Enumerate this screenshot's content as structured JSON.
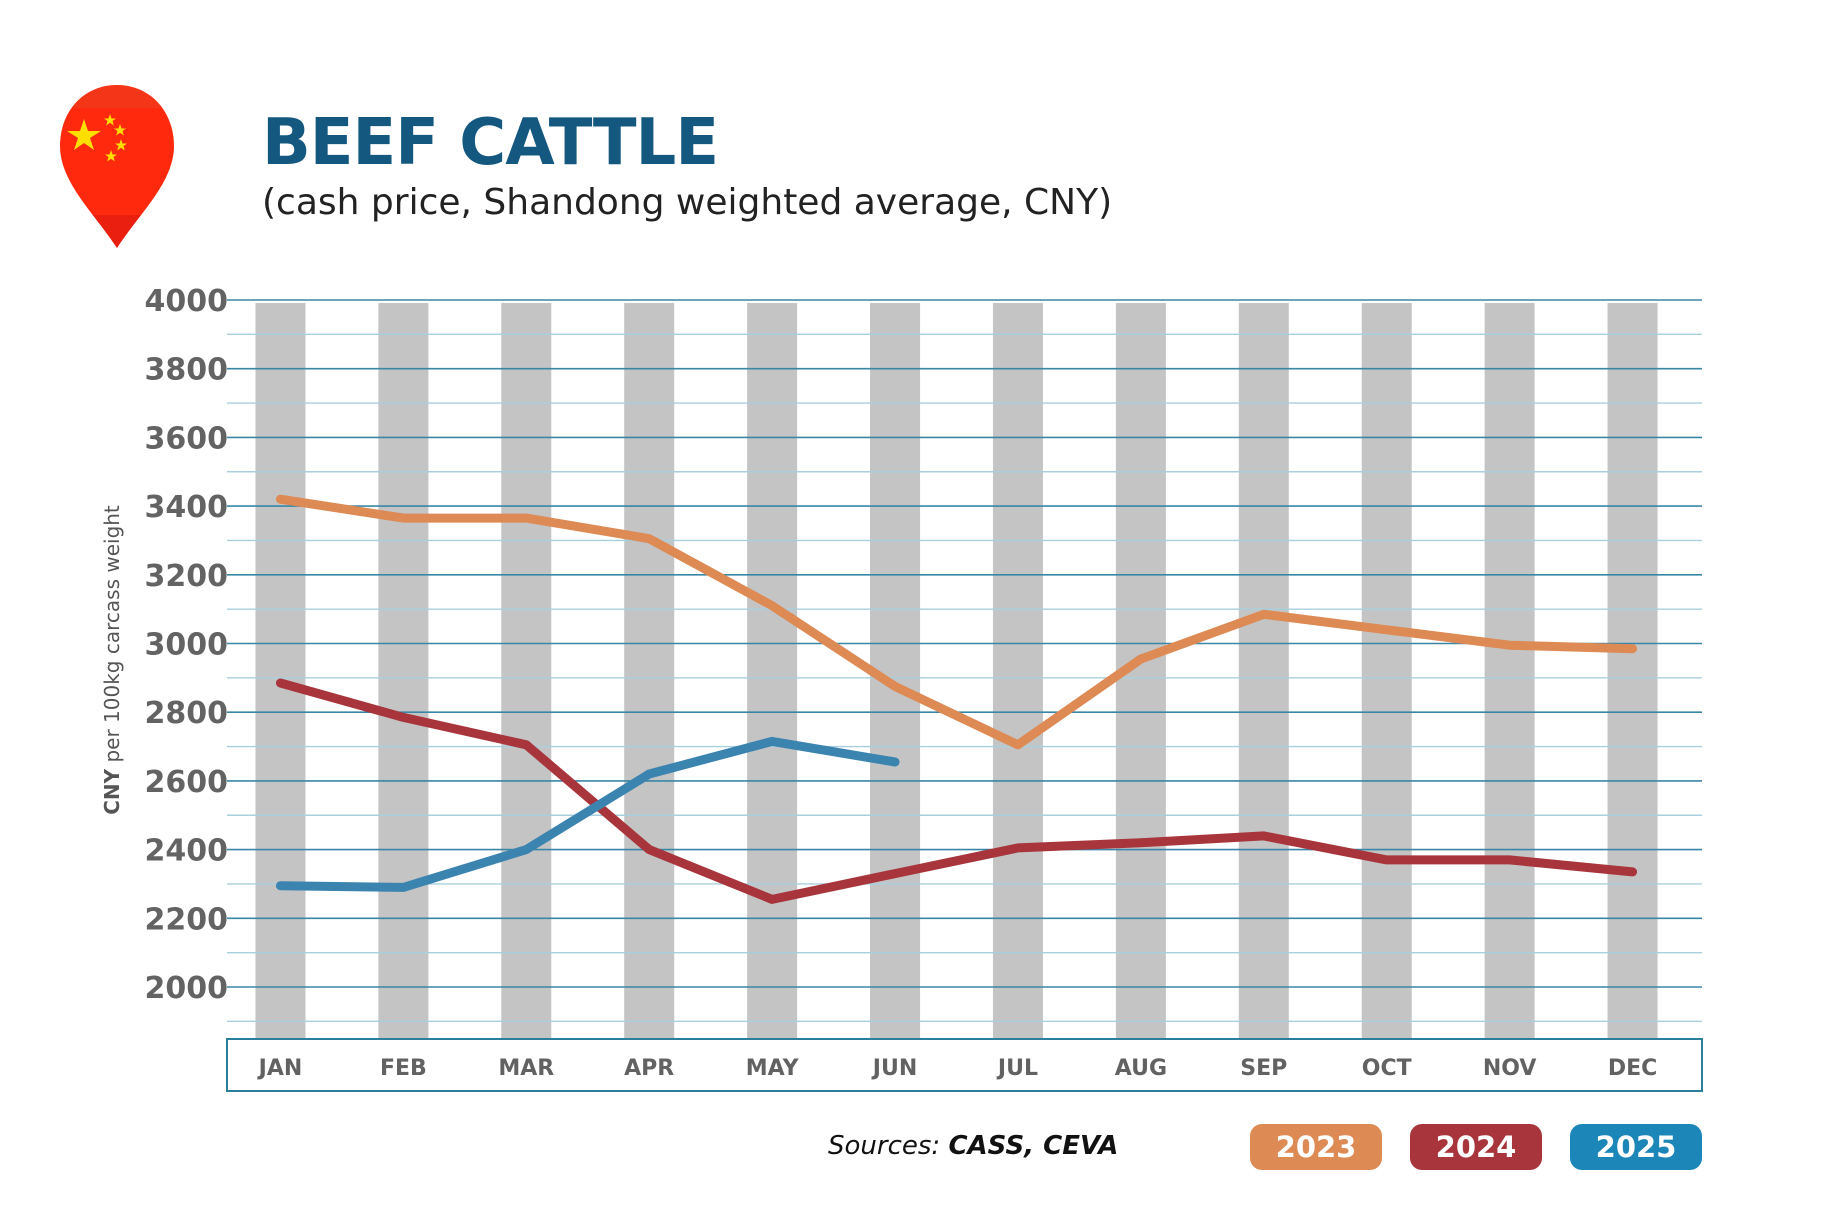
{
  "header": {
    "title": "BEEF CATTLE",
    "subtitle": "(cash price, Shandong weighted average, CNY)",
    "flag_icon": "china-flag-map-pin-icon"
  },
  "footer": {
    "sources_prefix": "Sources: ",
    "sources_names": "CASS, CEVA"
  },
  "colors": {
    "title": "#15587f",
    "series_2023": "#dd8a54",
    "series_2024": "#a8353b",
    "series_2025": "#3c84b0",
    "legend_2025": "#1b86b7",
    "grid_major": "#3a86a6",
    "grid_minor": "#a9cfde",
    "column_band": "#c4c4c4"
  },
  "chart_data": {
    "type": "line",
    "ylabel_bold": "CNY",
    "ylabel_rest": " per 100kg carcass weight",
    "ylim": [
      1860,
      4000
    ],
    "yticks": [
      4000,
      3800,
      3600,
      3400,
      3200,
      3000,
      2800,
      2600,
      2400,
      2200,
      2000
    ],
    "grid": true,
    "legend_position": "bottom-right",
    "categories": [
      "JAN",
      "FEB",
      "MAR",
      "APR",
      "MAY",
      "JUN",
      "JUL",
      "AUG",
      "SEP",
      "OCT",
      "NOV",
      "DEC"
    ],
    "series": [
      {
        "name": "2023",
        "color": "#dd8a54",
        "values": [
          3420,
          3365,
          3365,
          3305,
          3110,
          2875,
          2705,
          2955,
          3085,
          3040,
          2995,
          2985
        ]
      },
      {
        "name": "2024",
        "color": "#a8353b",
        "values": [
          2885,
          2785,
          2705,
          2400,
          2255,
          2330,
          2405,
          2420,
          2440,
          2370,
          2370,
          2335
        ]
      },
      {
        "name": "2025",
        "color": "#3c84b0",
        "values": [
          2295,
          2290,
          2400,
          2620,
          2715,
          2655,
          null,
          null,
          null,
          null,
          null,
          null
        ]
      }
    ]
  }
}
